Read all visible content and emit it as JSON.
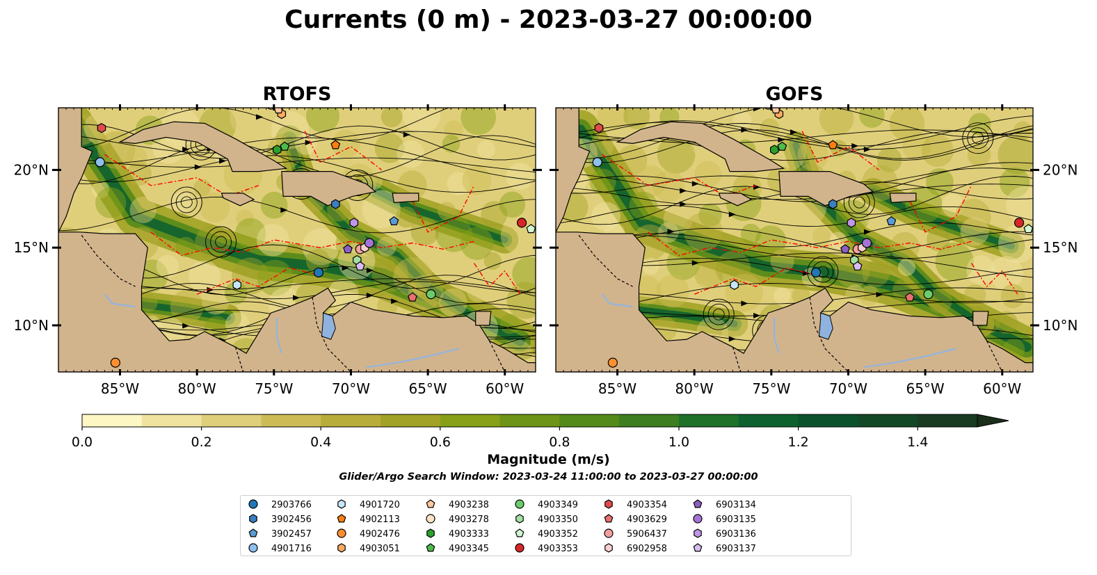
{
  "title": "Currents (0 m) - 2023-03-27 00:00:00",
  "panels": [
    {
      "title": "RTOFS"
    },
    {
      "title": "GOFS"
    }
  ],
  "map": {
    "lon_range": [
      -89,
      -58
    ],
    "lat_range": [
      7,
      24
    ],
    "lon_ticks": [
      {
        "v": -85,
        "label": "85°W"
      },
      {
        "v": -80,
        "label": "80°W"
      },
      {
        "v": -75,
        "label": "75°W"
      },
      {
        "v": -70,
        "label": "70°W"
      },
      {
        "v": -65,
        "label": "65°W"
      },
      {
        "v": -60,
        "label": "60°W"
      }
    ],
    "lat_ticks": [
      {
        "v": 20,
        "label": "20°N"
      },
      {
        "v": 15,
        "label": "15°N"
      },
      {
        "v": 10,
        "label": "10°N"
      }
    ],
    "land_color": "#d2b48c",
    "eez_color": "#ff0000"
  },
  "colorbar": {
    "label": "Magnitude (m/s)",
    "range": [
      0,
      1.5
    ],
    "ticks": [
      {
        "v": 0.0,
        "label": "0.0"
      },
      {
        "v": 0.2,
        "label": "0.2"
      },
      {
        "v": 0.4,
        "label": "0.4"
      },
      {
        "v": 0.6,
        "label": "0.6"
      },
      {
        "v": 0.8,
        "label": "0.8"
      },
      {
        "v": 1.0,
        "label": "1.0"
      },
      {
        "v": 1.2,
        "label": "1.2"
      },
      {
        "v": 1.4,
        "label": "1.4"
      }
    ],
    "colors": [
      "#fdf7c3",
      "#f0e3a0",
      "#e0cf7a",
      "#cdbc55",
      "#b8ad3a",
      "#a2a226",
      "#87a017",
      "#6d9416",
      "#548a1a",
      "#3c7e20",
      "#1f7028",
      "#0e612f",
      "#0b522c",
      "#134826",
      "#193b22",
      "#1a2e1a"
    ]
  },
  "chart_data": {
    "type": "map",
    "title": "Currents (0 m) - 2023-03-27 00:00:00",
    "colorbar_label": "Magnitude (m/s)",
    "search_window": "Glider/Argo Search Window: 2023-03-24 11:00:00 to 2023-03-27 00:00:00",
    "panels": [
      "RTOFS",
      "GOFS"
    ],
    "lon_range": [
      -89,
      -58
    ],
    "lat_range": [
      7,
      24
    ],
    "floats": [
      {
        "id": "2903766",
        "color": "#1f77b4",
        "marker": "circle",
        "lon": -72.1,
        "lat": 13.4
      },
      {
        "id": "3902456",
        "color": "#3a7fc0",
        "marker": "hexagon",
        "lon": -71.0,
        "lat": 17.8
      },
      {
        "id": "3902457",
        "color": "#5b9bd5",
        "marker": "pentagon",
        "lon": -67.2,
        "lat": 16.7
      },
      {
        "id": "4901716",
        "color": "#8ec0ec",
        "marker": "circle",
        "lon": -86.3,
        "lat": 20.5
      },
      {
        "id": "4901720",
        "color": "#c6e6fb",
        "marker": "hexagon",
        "lon": -77.4,
        "lat": 12.6
      },
      {
        "id": "4902113",
        "color": "#ff7f0e",
        "marker": "pentagon",
        "lon": -71.0,
        "lat": 21.6
      },
      {
        "id": "4902476",
        "color": "#ff8f2f",
        "marker": "circle",
        "lon": -85.3,
        "lat": 7.6
      },
      {
        "id": "4903051",
        "color": "#ffab60",
        "marker": "hexagon",
        "lon": -74.5,
        "lat": 23.6
      },
      {
        "id": "4903238",
        "color": "#ffc89a",
        "marker": "pentagon",
        "lon": -74.7,
        "lat": 23.9
      },
      {
        "id": "4903278",
        "color": "#ffe2c6",
        "marker": "circle",
        "lon": -75.2,
        "lat": 24.2
      },
      {
        "id": "4903333",
        "color": "#2ca02c",
        "marker": "hexagon",
        "lon": -74.8,
        "lat": 21.3
      },
      {
        "id": "4903345",
        "color": "#4cbb4c",
        "marker": "pentagon",
        "lon": -74.3,
        "lat": 21.5
      },
      {
        "id": "4903349",
        "color": "#6ccc6c",
        "marker": "circle",
        "lon": -64.8,
        "lat": 12.0
      },
      {
        "id": "4903350",
        "color": "#a2e0a2",
        "marker": "hexagon",
        "lon": -69.6,
        "lat": 14.2
      },
      {
        "id": "4903352",
        "color": "#d2f5d2",
        "marker": "pentagon",
        "lon": -58.3,
        "lat": 16.2
      },
      {
        "id": "4903353",
        "color": "#d62728",
        "marker": "circle",
        "lon": -58.9,
        "lat": 16.6
      },
      {
        "id": "4903354",
        "color": "#e04a4b",
        "marker": "hexagon",
        "lon": -86.2,
        "lat": 22.7
      },
      {
        "id": "4903629",
        "color": "#e8706f",
        "marker": "pentagon",
        "lon": -66.0,
        "lat": 11.8
      },
      {
        "id": "5906437",
        "color": "#f2a0a0",
        "marker": "circle",
        "lon": -69.4,
        "lat": 14.9
      },
      {
        "id": "6902958",
        "color": "#f9cfcf",
        "marker": "hexagon",
        "lon": -69.1,
        "lat": 15.0
      },
      {
        "id": "6903134",
        "color": "#8c5fc2",
        "marker": "pentagon",
        "lon": -70.2,
        "lat": 14.9
      },
      {
        "id": "6903135",
        "color": "#a374d6",
        "marker": "circle",
        "lon": -68.8,
        "lat": 15.3
      },
      {
        "id": "6903136",
        "color": "#bf97e6",
        "marker": "hexagon",
        "lon": -69.8,
        "lat": 16.6
      },
      {
        "id": "6903137",
        "color": "#d7bdf2",
        "marker": "pentagon",
        "lon": -69.4,
        "lat": 13.8
      }
    ]
  }
}
